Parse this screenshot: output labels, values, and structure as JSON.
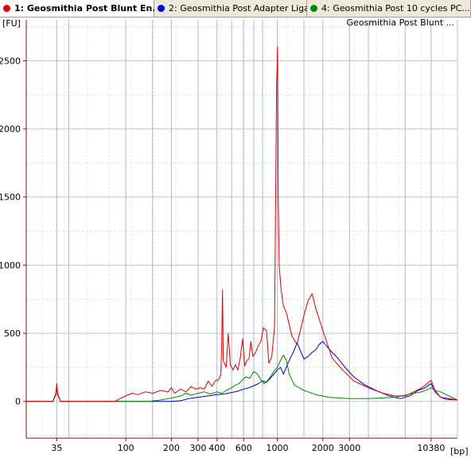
{
  "tabs": [
    {
      "label": "1: Geosmithia Post Blunt En...",
      "color": "#e00000",
      "active": true
    },
    {
      "label": "2: Geosmithia Post Adapter Liga...",
      "color": "#0000d0",
      "active": false
    },
    {
      "label": "4: Geosmithia Post 10 cycles PC...",
      "color": "#008800",
      "active": false
    }
  ],
  "chart_data": {
    "type": "line",
    "title": "Geosmithia Post Blunt ...",
    "ylabel": "[FU]",
    "xlabel": "[bp]",
    "xscale": "log",
    "xlim": [
      22,
      15500
    ],
    "ylim": [
      -270,
      2800
    ],
    "y_ticks": [
      0,
      500,
      1000,
      1500,
      2000,
      2500
    ],
    "x_ticks": [
      35,
      100,
      200,
      300,
      400,
      600,
      1000,
      2000,
      3000,
      10380
    ],
    "x_tick_labels": [
      "35",
      "100",
      "200",
      "300",
      "400",
      "600",
      "1000",
      "2000",
      "3000",
      "10380"
    ],
    "ladder_lines": [
      35,
      42,
      100,
      150,
      200,
      300,
      400,
      500,
      600,
      700,
      800,
      1000,
      1500,
      2000,
      3000,
      4000,
      7000,
      10380
    ],
    "series": [
      {
        "name": "1: Geosmithia Post Blunt En...",
        "color": "#e00000",
        "points": [
          [
            22,
            0
          ],
          [
            33,
            0
          ],
          [
            34.5,
            60
          ],
          [
            35,
            130
          ],
          [
            35.5,
            60
          ],
          [
            37,
            0
          ],
          [
            60,
            0
          ],
          [
            85,
            0
          ],
          [
            95,
            30
          ],
          [
            100,
            40
          ],
          [
            110,
            60
          ],
          [
            120,
            50
          ],
          [
            135,
            70
          ],
          [
            150,
            60
          ],
          [
            170,
            80
          ],
          [
            190,
            70
          ],
          [
            200,
            100
          ],
          [
            210,
            60
          ],
          [
            230,
            90
          ],
          [
            250,
            70
          ],
          [
            270,
            110
          ],
          [
            290,
            90
          ],
          [
            310,
            100
          ],
          [
            330,
            90
          ],
          [
            350,
            150
          ],
          [
            370,
            110
          ],
          [
            390,
            150
          ],
          [
            410,
            160
          ],
          [
            425,
            200
          ],
          [
            430,
            440
          ],
          [
            435,
            820
          ],
          [
            440,
            300
          ],
          [
            460,
            250
          ],
          [
            475,
            500
          ],
          [
            490,
            270
          ],
          [
            510,
            230
          ],
          [
            530,
            270
          ],
          [
            550,
            230
          ],
          [
            570,
            320
          ],
          [
            590,
            460
          ],
          [
            610,
            260
          ],
          [
            630,
            300
          ],
          [
            650,
            310
          ],
          [
            670,
            440
          ],
          [
            690,
            330
          ],
          [
            720,
            360
          ],
          [
            750,
            410
          ],
          [
            780,
            440
          ],
          [
            810,
            540
          ],
          [
            850,
            520
          ],
          [
            880,
            280
          ],
          [
            920,
            330
          ],
          [
            960,
            550
          ],
          [
            990,
            2300
          ],
          [
            1005,
            2600
          ],
          [
            1015,
            1500
          ],
          [
            1030,
            1000
          ],
          [
            1060,
            820
          ],
          [
            1100,
            700
          ],
          [
            1150,
            650
          ],
          [
            1250,
            480
          ],
          [
            1350,
            420
          ],
          [
            1500,
            630
          ],
          [
            1600,
            740
          ],
          [
            1700,
            790
          ],
          [
            1800,
            680
          ],
          [
            2000,
            520
          ],
          [
            2300,
            320
          ],
          [
            2700,
            230
          ],
          [
            3200,
            150
          ],
          [
            4000,
            100
          ],
          [
            5000,
            60
          ],
          [
            6000,
            40
          ],
          [
            7000,
            40
          ],
          [
            8000,
            70
          ],
          [
            9000,
            100
          ],
          [
            10000,
            140
          ],
          [
            10380,
            155
          ],
          [
            11000,
            80
          ],
          [
            12000,
            30
          ],
          [
            13000,
            15
          ],
          [
            15500,
            10
          ]
        ]
      },
      {
        "name": "2: Geosmithia Post Adapter Liga...",
        "color": "#0000d0",
        "points": [
          [
            22,
            0
          ],
          [
            33,
            0
          ],
          [
            34.5,
            50
          ],
          [
            35,
            120
          ],
          [
            35.5,
            50
          ],
          [
            37,
            0
          ],
          [
            60,
            0
          ],
          [
            100,
            0
          ],
          [
            200,
            0
          ],
          [
            230,
            5
          ],
          [
            260,
            20
          ],
          [
            300,
            30
          ],
          [
            350,
            40
          ],
          [
            400,
            50
          ],
          [
            450,
            55
          ],
          [
            500,
            65
          ],
          [
            550,
            75
          ],
          [
            600,
            90
          ],
          [
            650,
            100
          ],
          [
            700,
            115
          ],
          [
            750,
            130
          ],
          [
            800,
            150
          ],
          [
            850,
            140
          ],
          [
            900,
            170
          ],
          [
            950,
            200
          ],
          [
            1000,
            230
          ],
          [
            1050,
            250
          ],
          [
            1100,
            200
          ],
          [
            1200,
            300
          ],
          [
            1300,
            380
          ],
          [
            1350,
            430
          ],
          [
            1400,
            390
          ],
          [
            1500,
            310
          ],
          [
            1600,
            330
          ],
          [
            1700,
            360
          ],
          [
            1800,
            380
          ],
          [
            1900,
            420
          ],
          [
            2000,
            440
          ],
          [
            2100,
            410
          ],
          [
            2300,
            360
          ],
          [
            2500,
            320
          ],
          [
            2800,
            250
          ],
          [
            3200,
            180
          ],
          [
            3800,
            120
          ],
          [
            4500,
            80
          ],
          [
            5500,
            40
          ],
          [
            6500,
            20
          ],
          [
            7500,
            40
          ],
          [
            8500,
            80
          ],
          [
            9500,
            100
          ],
          [
            10000,
            120
          ],
          [
            10380,
            130
          ],
          [
            11000,
            70
          ],
          [
            12000,
            30
          ],
          [
            15500,
            10
          ]
        ]
      },
      {
        "name": "4: Geosmithia Post 10 cycles PC...",
        "color": "#008800",
        "points": [
          [
            22,
            0
          ],
          [
            33,
            0
          ],
          [
            34.5,
            50
          ],
          [
            35,
            110
          ],
          [
            35.5,
            50
          ],
          [
            37,
            0
          ],
          [
            60,
            0
          ],
          [
            100,
            0
          ],
          [
            140,
            0
          ],
          [
            170,
            10
          ],
          [
            200,
            25
          ],
          [
            230,
            40
          ],
          [
            250,
            60
          ],
          [
            270,
            45
          ],
          [
            300,
            60
          ],
          [
            330,
            70
          ],
          [
            360,
            55
          ],
          [
            380,
            60
          ],
          [
            400,
            70
          ],
          [
            430,
            60
          ],
          [
            460,
            80
          ],
          [
            500,
            100
          ],
          [
            530,
            120
          ],
          [
            560,
            130
          ],
          [
            590,
            160
          ],
          [
            620,
            180
          ],
          [
            660,
            170
          ],
          [
            700,
            220
          ],
          [
            740,
            200
          ],
          [
            780,
            160
          ],
          [
            820,
            130
          ],
          [
            860,
            150
          ],
          [
            900,
            180
          ],
          [
            950,
            220
          ],
          [
            1000,
            250
          ],
          [
            1050,
            300
          ],
          [
            1100,
            340
          ],
          [
            1150,
            300
          ],
          [
            1200,
            200
          ],
          [
            1300,
            120
          ],
          [
            1500,
            80
          ],
          [
            1800,
            50
          ],
          [
            2200,
            30
          ],
          [
            3000,
            20
          ],
          [
            4000,
            20
          ],
          [
            6000,
            30
          ],
          [
            8000,
            60
          ],
          [
            9000,
            70
          ],
          [
            10000,
            90
          ],
          [
            10380,
            100
          ],
          [
            11000,
            80
          ],
          [
            12000,
            70
          ],
          [
            15500,
            10
          ]
        ]
      }
    ]
  }
}
